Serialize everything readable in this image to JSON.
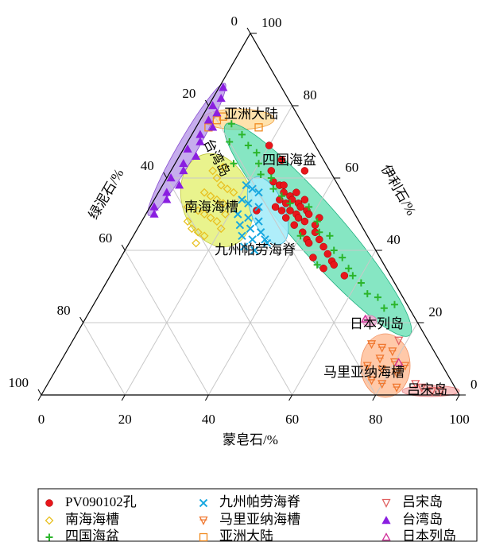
{
  "chart_data": {
    "type": "ternary",
    "grid": true,
    "axes": {
      "bottom": {
        "label": "蒙皂石/%",
        "ticks": [
          0,
          20,
          40,
          60,
          80,
          100
        ]
      },
      "right": {
        "label": "伊利石/%",
        "ticks": [
          0,
          20,
          40,
          60,
          80,
          100
        ]
      },
      "left": {
        "label": "绿泥石/%",
        "ticks": [
          0,
          20,
          40,
          60,
          80,
          100
        ]
      }
    },
    "components": [
      "蒙皂石",
      "伊利石",
      "绿泥石"
    ],
    "series": [
      {
        "name": "PV090102孔",
        "color": "#e8161b",
        "marker": "circle",
        "values": [
          [
            20,
            69,
            11
          ],
          [
            25,
            65,
            10
          ],
          [
            24,
            62,
            14
          ],
          [
            26,
            59,
            15
          ],
          [
            28,
            58,
            14
          ],
          [
            29,
            58,
            13
          ],
          [
            30,
            56,
            14
          ],
          [
            32,
            55,
            13
          ],
          [
            33,
            54,
            13
          ],
          [
            35,
            53,
            12
          ],
          [
            36,
            52,
            12
          ],
          [
            38,
            51,
            11
          ],
          [
            32,
            53,
            15
          ],
          [
            34,
            51,
            15
          ],
          [
            36,
            50,
            14
          ],
          [
            37,
            49,
            14
          ],
          [
            39,
            48,
            13
          ],
          [
            39,
            50,
            11
          ],
          [
            42,
            47,
            11
          ],
          [
            43,
            45,
            12
          ],
          [
            42,
            43,
            15
          ],
          [
            43,
            42,
            15
          ],
          [
            45,
            43,
            12
          ],
          [
            47,
            41,
            12
          ],
          [
            49,
            39,
            12
          ],
          [
            51,
            37,
            12
          ],
          [
            52,
            36,
            12
          ],
          [
            56,
            33,
            11
          ],
          [
            50,
            35,
            15
          ],
          [
            46,
            38,
            16
          ],
          [
            40,
            45,
            15
          ],
          [
            37,
            47,
            16
          ],
          [
            30,
            54,
            16
          ],
          [
            30,
            52,
            18
          ],
          [
            26,
            51,
            23
          ],
          [
            32,
            51,
            17
          ],
          [
            34,
            49,
            17
          ],
          [
            33,
            56,
            11
          ],
          [
            36,
            54,
            10
          ],
          [
            42,
            49,
            9
          ],
          [
            32,
            62,
            6
          ]
        ]
      },
      {
        "name": "南海海槽",
        "color": "#e8c020",
        "marker": "diamond",
        "values": [
          [
            10,
            62,
            28
          ],
          [
            12,
            60,
            28
          ],
          [
            14,
            58,
            28
          ],
          [
            16,
            57,
            27
          ],
          [
            11,
            56,
            33
          ],
          [
            13,
            55,
            32
          ],
          [
            15,
            54,
            31
          ],
          [
            17,
            53,
            30
          ],
          [
            9,
            52,
            39
          ],
          [
            12,
            51,
            37
          ],
          [
            14,
            50,
            36
          ],
          [
            16,
            49,
            35
          ],
          [
            18,
            48,
            34
          ],
          [
            11,
            48,
            41
          ],
          [
            13,
            46,
            41
          ],
          [
            15,
            45,
            40
          ],
          [
            17,
            44,
            39
          ],
          [
            19,
            50,
            31
          ],
          [
            20,
            46,
            34
          ],
          [
            16,
            42,
            42
          ],
          [
            12,
            63,
            25
          ],
          [
            18,
            56,
            26
          ]
        ]
      },
      {
        "name": "四国海盆",
        "color": "#2bb52b",
        "marker": "plus",
        "values": [
          [
            8,
            75,
            17
          ],
          [
            12,
            72,
            16
          ],
          [
            10,
            70,
            20
          ],
          [
            15,
            69,
            16
          ],
          [
            18,
            67,
            15
          ],
          [
            14,
            64,
            22
          ],
          [
            20,
            64,
            16
          ],
          [
            22,
            61,
            17
          ],
          [
            25,
            60,
            15
          ],
          [
            27,
            57,
            16
          ],
          [
            30,
            55,
            15
          ],
          [
            33,
            53,
            14
          ],
          [
            38,
            52,
            10
          ],
          [
            42,
            48,
            10
          ],
          [
            44,
            45,
            11
          ],
          [
            47,
            44,
            9
          ],
          [
            50,
            40,
            10
          ],
          [
            53,
            38,
            9
          ],
          [
            56,
            35,
            9
          ],
          [
            58,
            33,
            9
          ],
          [
            61,
            31,
            8
          ],
          [
            64,
            28,
            8
          ],
          [
            67,
            27,
            6
          ],
          [
            70,
            24,
            6
          ],
          [
            72,
            25,
            3
          ],
          [
            48,
            36,
            16
          ],
          [
            40,
            44,
            16
          ]
        ]
      },
      {
        "name": "九州帕劳海脊",
        "color": "#18a8e0",
        "marker": "x",
        "values": [
          [
            20,
            58,
            22
          ],
          [
            22,
            57,
            21
          ],
          [
            24,
            56,
            20
          ],
          [
            21,
            54,
            25
          ],
          [
            23,
            53,
            24
          ],
          [
            26,
            52,
            22
          ],
          [
            22,
            50,
            28
          ],
          [
            25,
            49,
            26
          ],
          [
            28,
            48,
            24
          ],
          [
            24,
            47,
            29
          ],
          [
            27,
            46,
            27
          ],
          [
            30,
            45,
            25
          ],
          [
            26,
            44,
            30
          ],
          [
            29,
            43,
            28
          ],
          [
            32,
            43,
            25
          ],
          [
            28,
            41,
            31
          ],
          [
            31,
            40,
            29
          ],
          [
            33,
            42,
            25
          ]
        ]
      },
      {
        "name": "马里亚纳海槽",
        "color": "#f07830",
        "marker": "tri-down-lines",
        "values": [
          [
            72,
            14,
            14
          ],
          [
            75,
            13,
            12
          ],
          [
            78,
            12,
            10
          ],
          [
            76,
            10,
            14
          ],
          [
            80,
            9,
            11
          ],
          [
            74,
            8,
            18
          ],
          [
            78,
            7,
            15
          ],
          [
            82,
            6,
            12
          ],
          [
            77,
            4,
            19
          ],
          [
            80,
            3,
            17
          ],
          [
            84,
            2,
            14
          ],
          [
            83,
            8,
            9
          ]
        ]
      },
      {
        "name": "亚洲大陆",
        "color": "#f08a20",
        "marker": "square",
        "values": [
          [
            4,
            76,
            20
          ],
          [
            5,
            77,
            18
          ],
          [
            3,
            74,
            23
          ],
          [
            15,
            74,
            11
          ]
        ]
      },
      {
        "name": "吕宋岛",
        "color": "#e06060",
        "marker": "tri-down-open",
        "values": [
          [
            90,
            2,
            8
          ],
          [
            93,
            1,
            6
          ],
          [
            95,
            1,
            4
          ],
          [
            88,
            3,
            9
          ],
          [
            78,
            15,
            7
          ]
        ]
      },
      {
        "name": "台湾岛",
        "color": "#8a1ee0",
        "marker": "tri-up-filled",
        "values": [
          [
            1,
            85,
            14
          ],
          [
            2,
            82,
            16
          ],
          [
            1,
            80,
            19
          ],
          [
            3,
            78,
            19
          ],
          [
            2,
            76,
            22
          ],
          [
            4,
            74,
            22
          ],
          [
            2,
            72,
            26
          ],
          [
            3,
            70,
            27
          ],
          [
            1,
            68,
            31
          ],
          [
            4,
            66,
            30
          ],
          [
            2,
            64,
            34
          ],
          [
            3,
            62,
            35
          ],
          [
            1,
            60,
            39
          ],
          [
            4,
            58,
            38
          ],
          [
            2,
            56,
            42
          ],
          [
            3,
            54,
            43
          ],
          [
            1,
            52,
            47
          ],
          [
            2,
            50,
            48
          ]
        ]
      },
      {
        "name": "日本列岛",
        "color": "#d0309a",
        "marker": "tri-up-open",
        "values": [
          [
            67,
            21,
            12
          ],
          [
            81,
            9,
            10
          ]
        ]
      }
    ],
    "region_labels": [
      "台湾岛",
      "亚洲大陆",
      "四国海盆",
      "南海海槽",
      "九州帕劳海脊",
      "日本列岛",
      "马里亚纳海槽",
      "吕宋岛"
    ]
  }
}
